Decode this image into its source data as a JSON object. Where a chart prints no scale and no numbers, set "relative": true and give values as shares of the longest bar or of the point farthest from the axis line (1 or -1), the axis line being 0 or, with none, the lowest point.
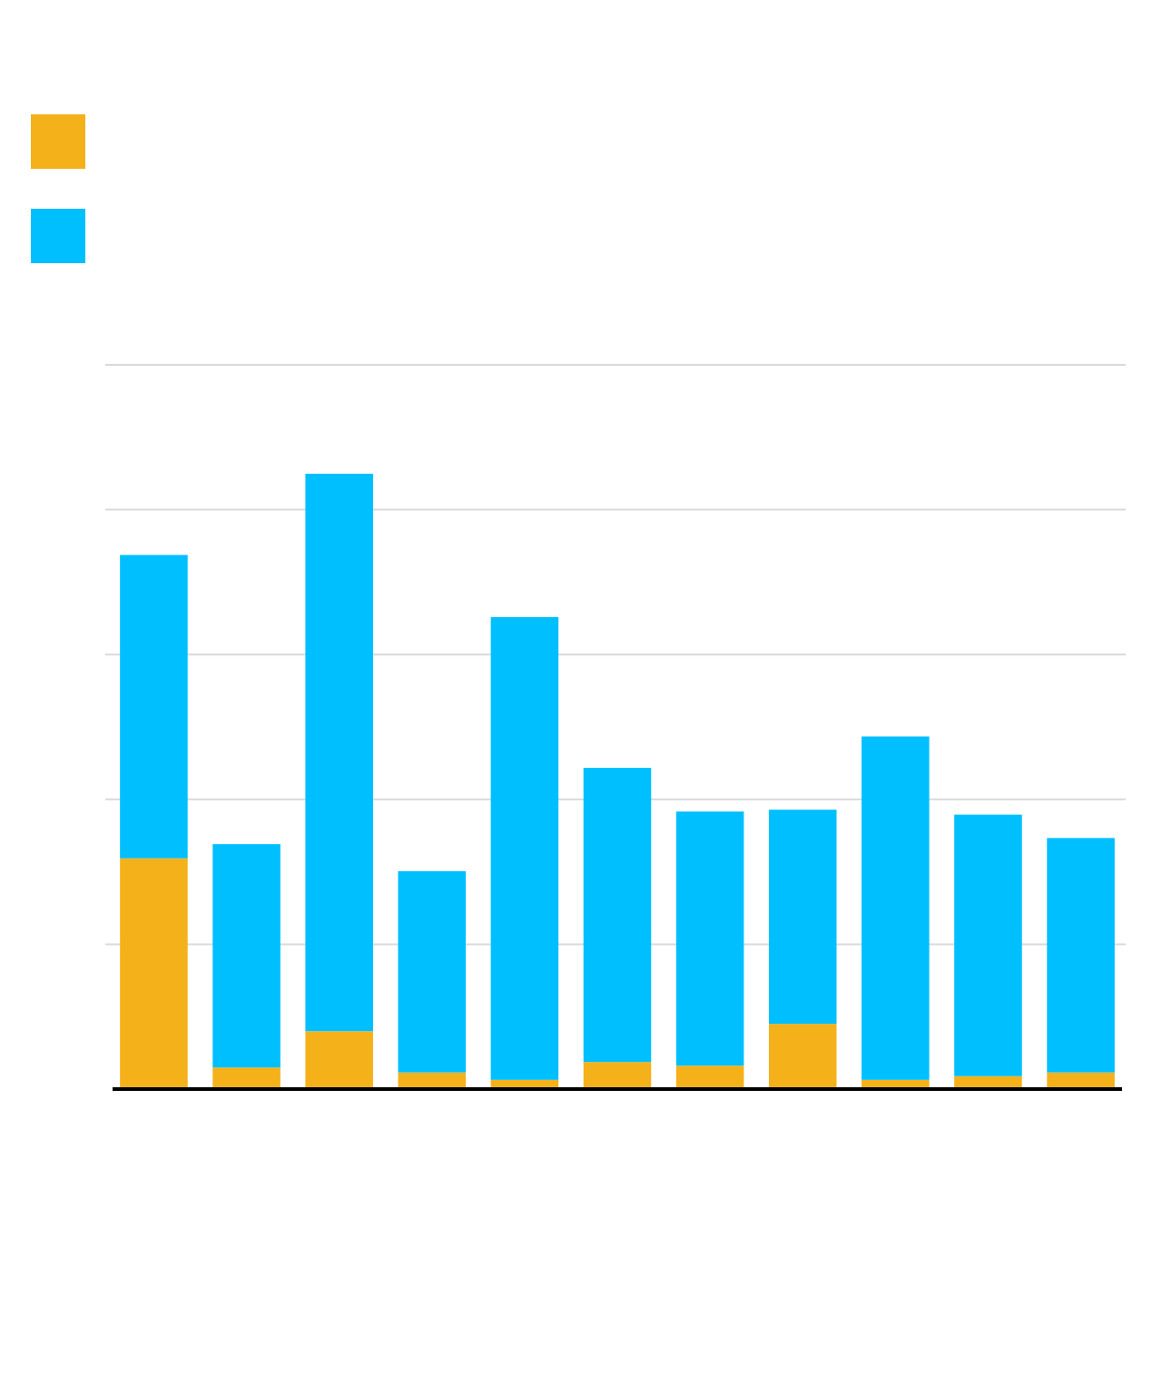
{
  "chart_data": {
    "type": "bar",
    "stacked": true,
    "relative": true,
    "grid": "y",
    "categories": [
      null,
      null,
      null,
      null,
      null,
      null,
      null,
      null,
      null,
      null,
      null
    ],
    "series": [
      {
        "color": "#f4b11a",
        "values": [
          0.375,
          0.035,
          0.094,
          0.027,
          0.015,
          0.044,
          0.038,
          0.106,
          0.015,
          0.021,
          0.027
        ]
      },
      {
        "color": "#00bfff",
        "values": [
          0.493,
          0.363,
          0.906,
          0.327,
          0.752,
          0.478,
          0.413,
          0.348,
          0.558,
          0.425,
          0.381
        ]
      }
    ]
  }
}
